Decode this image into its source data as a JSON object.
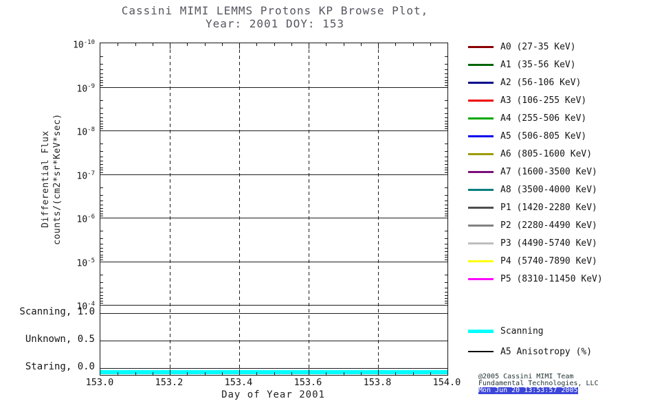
{
  "title": {
    "line1": "Cassini MIMI LEMMS Protons KP Browse Plot,",
    "line2": "Year: 2001 DOY: 153"
  },
  "axes": {
    "y_label_line1": "Differential Flux",
    "y_label_line2": "counts/(cm2*sr*KeV*sec)",
    "x_label": "Day of Year 2001"
  },
  "credit": {
    "line1": "@2005 Cassini MIMI Team",
    "line2": "Fundamental Technologies, LLC",
    "line3": "Mon Jun 20 13:53:57 2005"
  },
  "chart_data": {
    "type": "line",
    "title": "Cassini MIMI LEMMS Protons KP Browse Plot, Year: 2001 DOY: 153",
    "xlabel": "Day of Year 2001",
    "ylabel": "Differential Flux counts/(cm2*sr*KeV*sec)",
    "x_range": [
      153.0,
      154.0
    ],
    "x_tick_labels": [
      "153.0",
      "153.2",
      "153.4",
      "153.6",
      "153.8",
      "154.0"
    ],
    "x_minor_per_interval": 3,
    "grid": "on",
    "legend_position": "right",
    "flux_axis": {
      "scale": "log",
      "tick_exponents": [
        -10,
        -9,
        -8,
        -7,
        -6,
        -5,
        -4
      ]
    },
    "mode_axis": {
      "ticks": [
        {
          "label": "Scanning, 1.0",
          "value": 1.0
        },
        {
          "label": "Unknown, 0.5",
          "value": 0.5
        },
        {
          "label": "Staring, 0.0",
          "value": 0.0
        }
      ]
    },
    "series": [
      {
        "name": "Scanning",
        "color": "#00ffff",
        "x": [
          153.0,
          154.0
        ],
        "y": [
          0.0,
          0.0
        ]
      }
    ],
    "legend_channels": [
      {
        "label": "A0 (27-35 KeV)",
        "color": "#8b0000"
      },
      {
        "label": "A1 (35-56 KeV)",
        "color": "#006400"
      },
      {
        "label": "A2 (56-106 KeV)",
        "color": "#00008b"
      },
      {
        "label": "A3 (106-255 KeV)",
        "color": "#ee0000"
      },
      {
        "label": "A4 (255-506 KeV)",
        "color": "#00a800"
      },
      {
        "label": "A5 (506-805 KeV)",
        "color": "#0000ee"
      },
      {
        "label": "A6 (805-1600 KeV)",
        "color": "#9b9b00"
      },
      {
        "label": "A7 (1600-3500 KeV)",
        "color": "#7a0d7a"
      },
      {
        "label": "A8 (3500-4000 KeV)",
        "color": "#007d7d"
      },
      {
        "label": "P1 (1420-2280 KeV)",
        "color": "#4d4d4d"
      },
      {
        "label": "P2 (2280-4490 KeV)",
        "color": "#808080"
      },
      {
        "label": "P3 (4490-5740 KeV)",
        "color": "#bdbdbd"
      },
      {
        "label": "P4 (5740-7890 KeV)",
        "color": "#ffff00"
      },
      {
        "label": "P5 (8310-11450 KeV)",
        "color": "#ff00ff"
      }
    ],
    "legend_modes": [
      {
        "label": "Scanning",
        "color": "#00ffff",
        "thick": true
      },
      {
        "label": "A5 Anisotropy (%)",
        "color": "#000000",
        "thick": false
      }
    ]
  }
}
